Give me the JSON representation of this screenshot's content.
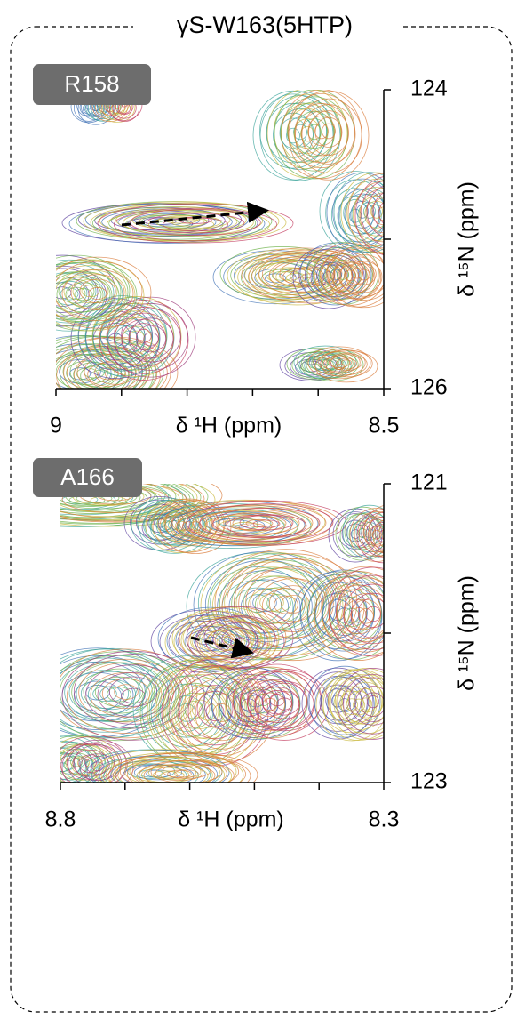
{
  "title": "γS-W163(5HTP)",
  "chart_data": [
    {
      "type": "contour",
      "label": "R158",
      "xlabel": "δ ¹H (ppm)",
      "ylabel": "δ ¹⁵N (ppm)",
      "xlim": [
        9,
        8.5
      ],
      "xticks": [
        9,
        8.5
      ],
      "xminorticks": [
        8.9,
        8.8,
        8.7,
        8.6
      ],
      "ylim": [
        124,
        126
      ],
      "yticks": [
        124,
        126
      ],
      "yminorticks": [
        125
      ]
    },
    {
      "type": "contour",
      "label": "A166",
      "xlabel": "δ ¹H (ppm)",
      "ylabel": "δ ¹⁵N (ppm)",
      "xlim": [
        8.8,
        8.3
      ],
      "xticks": [
        8.8,
        8.3
      ],
      "xminorticks": [
        8.7,
        8.6,
        8.5,
        8.4
      ],
      "ylim": [
        121,
        123
      ],
      "yticks": [
        121,
        123
      ],
      "yminorticks": [
        122
      ]
    }
  ]
}
